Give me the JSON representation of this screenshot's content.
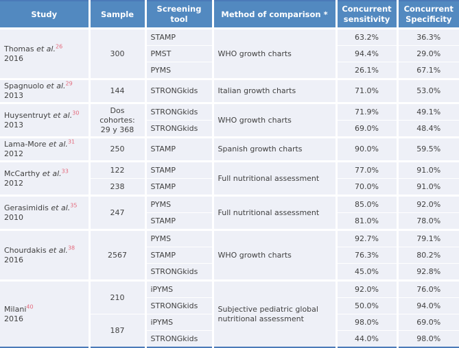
{
  "colors": {
    "header_background": "#5289c0",
    "header_text": "#ffffff",
    "row_background": "#eef0f7",
    "separator": "#ffffff",
    "outer_border": "#4a7ab8",
    "reference_superscript": "#e4697b",
    "body_text": "#404040"
  },
  "header": {
    "study": "Study",
    "sample": "Sample",
    "tool": "Screening tool",
    "method": "Method of comparison *",
    "sensitivity": "Concurrent sensitivity",
    "specificity": "Concurrent Specificity"
  },
  "groups": [
    {
      "name": "Thomas ",
      "etal": "et al.",
      "ref": "26",
      "year": "2016",
      "samples": [
        "300"
      ],
      "method": "WHO growth charts",
      "rows": [
        {
          "tool": "STAMP",
          "sens": "63.2%",
          "spec": "36.3%"
        },
        {
          "tool": "PMST",
          "sens": "94.4%",
          "spec": "29.0%"
        },
        {
          "tool": "PYMS",
          "sens": "26.1%",
          "spec": "67.1%"
        }
      ]
    },
    {
      "name": "Spagnuolo ",
      "etal": "et al.",
      "ref": "29",
      "year": "2013",
      "samples": [
        "144"
      ],
      "method": "Italian growth charts",
      "rows": [
        {
          "tool": "STRONGkids",
          "sens": "71.0%",
          "spec": "53.0%"
        }
      ]
    },
    {
      "name": "Huysentruyt ",
      "etal": "et al.",
      "ref": "30",
      "year": "2013",
      "samples": [
        "Dos cohortes: 29 y 368"
      ],
      "method": "WHO growth charts",
      "rows": [
        {
          "tool": "STRONGkids",
          "sens": "71.9%",
          "spec": "49.1%"
        },
        {
          "tool": "STRONGkids",
          "sens": "69.0%",
          "spec": "48.4%"
        }
      ]
    },
    {
      "name": "Lama-More ",
      "etal": "et al.",
      "ref": "31",
      "year": "2012",
      "samples": [
        "250"
      ],
      "method": "Spanish growth charts",
      "rows": [
        {
          "tool": "STAMP",
          "sens": "90.0%",
          "spec": "59.5%"
        }
      ]
    },
    {
      "name": "McCarthy ",
      "etal": "et al.",
      "ref": "33",
      "year": "2012",
      "samples": [
        "122",
        "238"
      ],
      "method": "Full nutritional assessment",
      "rows": [
        {
          "tool": "STAMP",
          "sens": "77.0%",
          "spec": "91.0%"
        },
        {
          "tool": "STAMP",
          "sens": "70.0%",
          "spec": "91.0%"
        }
      ]
    },
    {
      "name": "Gerasimidis ",
      "etal": "et al.",
      "ref": "35",
      "year": "2010",
      "samples": [
        "247"
      ],
      "method": "Full nutritional assessment",
      "rows": [
        {
          "tool": "PYMS",
          "sens": "85.0%",
          "spec": "92.0%"
        },
        {
          "tool": "STAMP",
          "sens": "81.0%",
          "spec": "78.0%"
        }
      ]
    },
    {
      "name": "Chourdakis ",
      "etal": "et al.",
      "ref": "38",
      "year": "2016",
      "samples": [
        "2567"
      ],
      "method": "WHO growth charts",
      "rows": [
        {
          "tool": "PYMS",
          "sens": "92.7%",
          "spec": "79.1%"
        },
        {
          "tool": "STAMP",
          "sens": "76.3%",
          "spec": "80.2%"
        },
        {
          "tool": "STRONGkids",
          "sens": "45.0%",
          "spec": "92.8%"
        }
      ]
    },
    {
      "name": "Milani",
      "etal": "",
      "ref": "40",
      "year": "2016",
      "samples": [
        "210",
        "187"
      ],
      "method": "Subjective pediatric global nutritional assessment",
      "rows": [
        {
          "tool": "iPYMS",
          "sens": "92.0%",
          "spec": "76.0%"
        },
        {
          "tool": "STRONGkids",
          "sens": "50.0%",
          "spec": "94.0%"
        },
        {
          "tool": "iPYMS",
          "sens": "98.0%",
          "spec": "69.0%"
        },
        {
          "tool": "STRONGkids",
          "sens": "44.0%",
          "spec": "98.0%"
        }
      ]
    }
  ]
}
